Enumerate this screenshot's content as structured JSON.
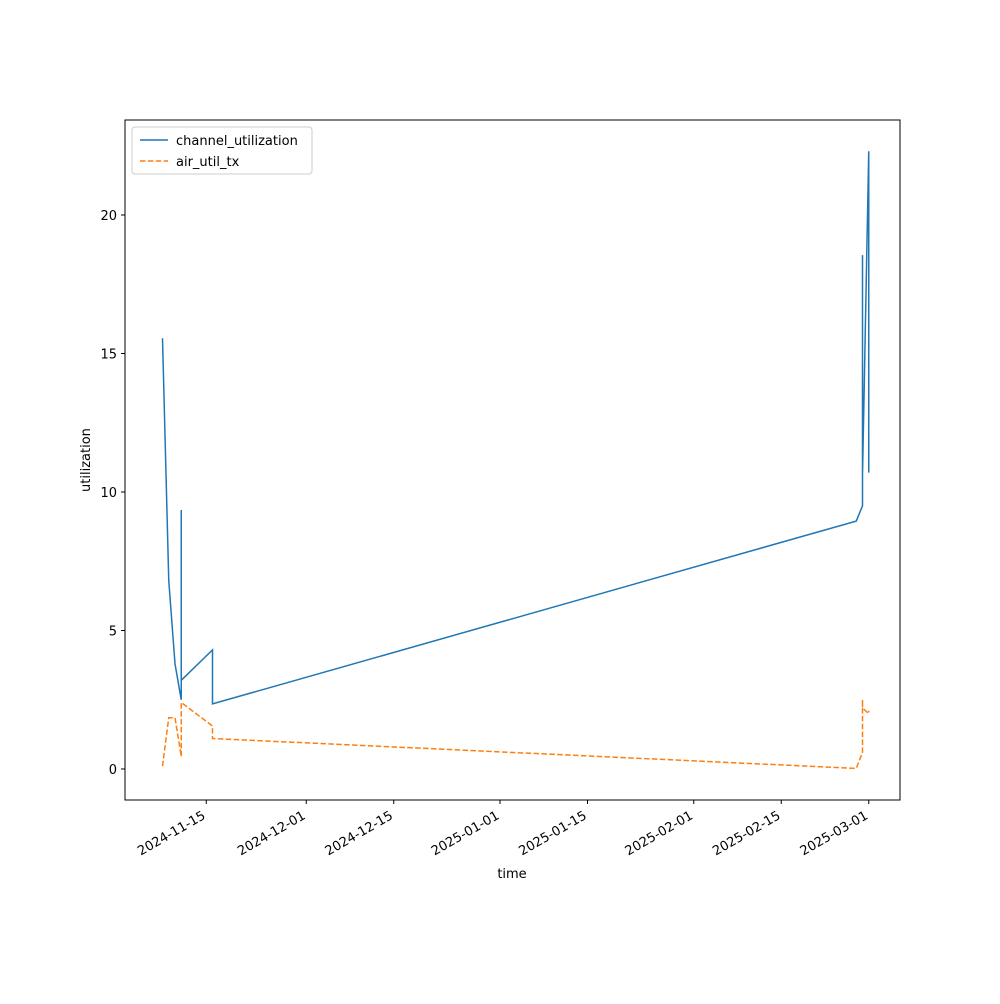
{
  "chart_data": {
    "type": "line",
    "xlabel": "time",
    "ylabel": "utilization",
    "x": [
      "2024-11-08",
      "2024-11-09",
      "2024-11-10",
      "2024-11-11",
      "2024-11-11",
      "2024-11-11",
      "2024-11-16",
      "2024-11-16",
      "2025-02-27",
      "2025-02-28",
      "2025-02-28",
      "2025-02-28",
      "2025-03-01",
      "2025-03-01"
    ],
    "series": [
      {
        "name": "channel_utilization",
        "color": "#1f77b4",
        "dash": "solid",
        "values": [
          15.55,
          6.8,
          3.8,
          2.5,
          9.35,
          3.2,
          4.3,
          2.35,
          8.95,
          9.5,
          18.55,
          10.6,
          22.3,
          10.7
        ]
      },
      {
        "name": "air_util_tx",
        "color": "#ff7f0e",
        "dash": "dashed",
        "values": [
          0.1,
          1.85,
          1.85,
          0.45,
          0.7,
          2.4,
          1.55,
          1.1,
          0.02,
          0.6,
          2.5,
          2.2,
          2.0,
          2.1
        ]
      }
    ],
    "xlim": [
      "2024-11-02",
      "2025-03-06"
    ],
    "xticks": [
      "2024-11-15",
      "2024-12-01",
      "2024-12-15",
      "2025-01-01",
      "2025-01-15",
      "2025-02-01",
      "2025-02-15",
      "2025-03-01"
    ],
    "ylim": [
      -1.12,
      23.43
    ],
    "yticks": [
      0,
      5,
      10,
      15,
      20
    ],
    "grid": false,
    "legend": "upper-left"
  }
}
